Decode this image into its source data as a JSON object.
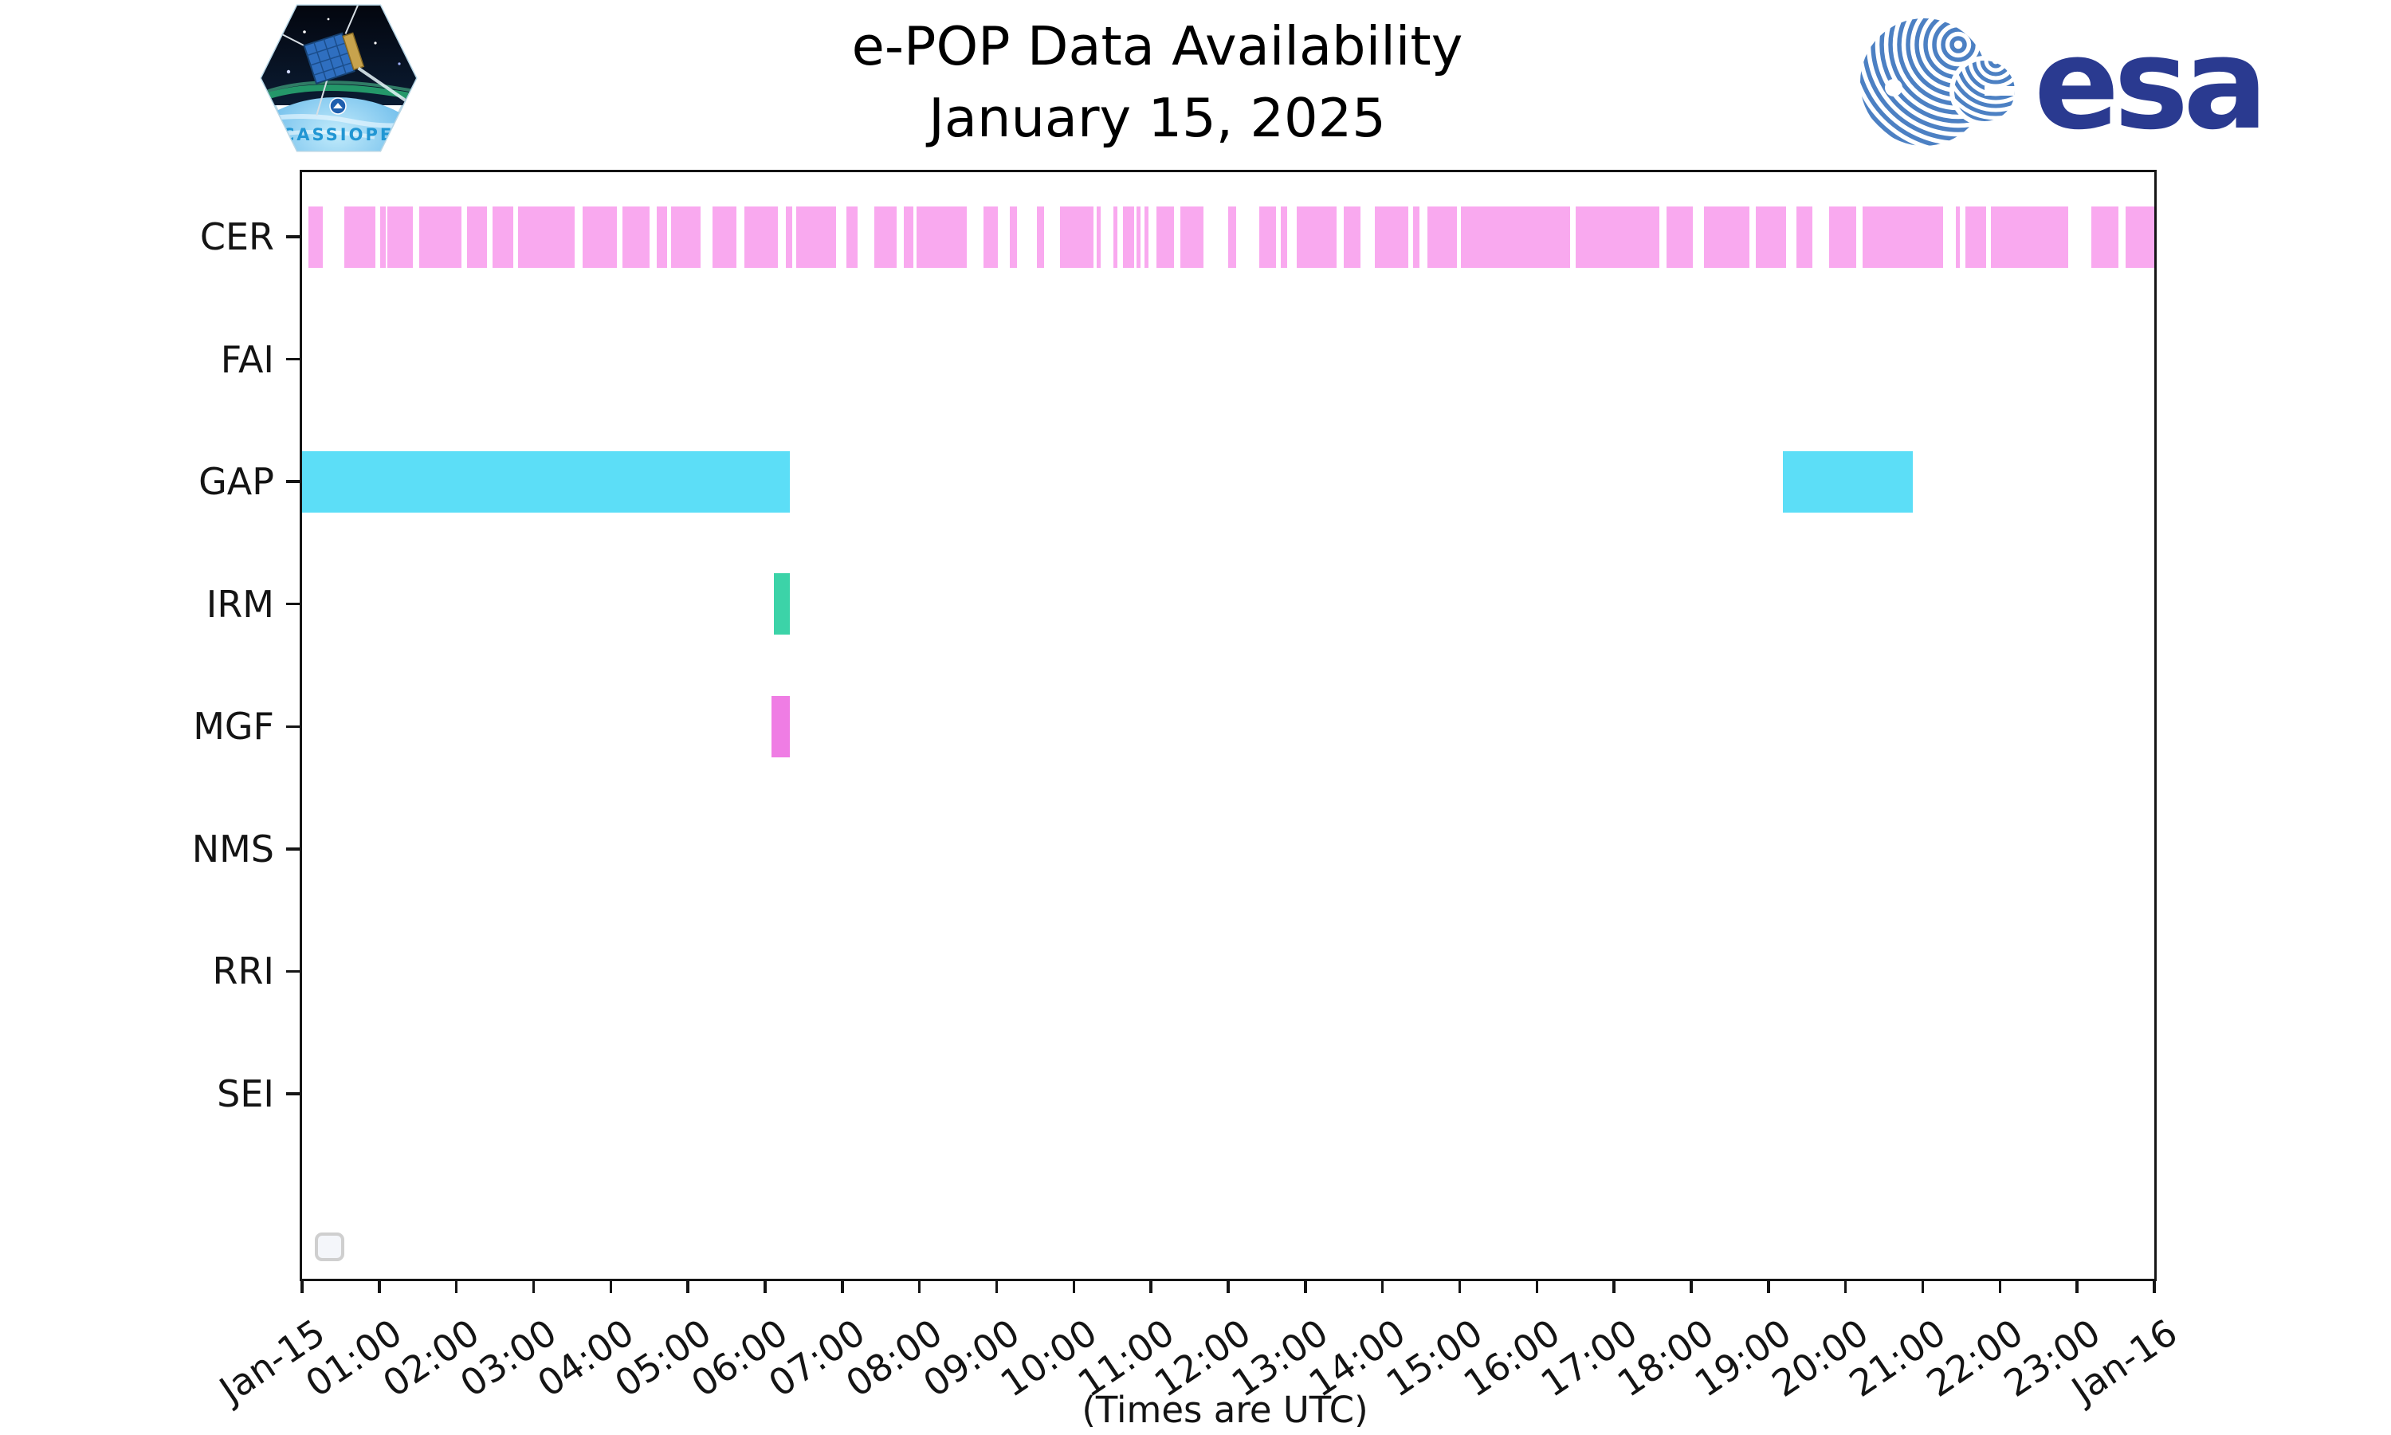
{
  "header": {
    "title_line1": "e-POP Data Availability",
    "title_line2": "January 15, 2025",
    "cassiope_label": "CASSIOPE",
    "esa_label": "esa"
  },
  "chart_data": {
    "type": "bar",
    "variant": "horizontal-availability-timeline (broken bars per instrument)",
    "title": "e-POP Data Availability",
    "subtitle": "January 15, 2025",
    "xlabel": "(Times are UTC)",
    "ylabel": "",
    "categories": [
      "CER",
      "FAI",
      "GAP",
      "IRM",
      "MGF",
      "NMS",
      "RRI",
      "SEI"
    ],
    "x_axis": {
      "tick_labels": [
        "Jan-15",
        "01:00",
        "02:00",
        "03:00",
        "04:00",
        "05:00",
        "06:00",
        "07:00",
        "08:00",
        "09:00",
        "10:00",
        "11:00",
        "12:00",
        "13:00",
        "14:00",
        "15:00",
        "16:00",
        "17:00",
        "18:00",
        "19:00",
        "20:00",
        "21:00",
        "22:00",
        "23:00",
        "Jan-16"
      ],
      "range_minutes": [
        0,
        1440
      ],
      "units": "minutes since Jan-15 00:00 UTC"
    },
    "grid": false,
    "legend": {
      "visible": true,
      "entries": [],
      "note": "small empty rounded legend box at lower left of plot"
    },
    "series": [
      {
        "name": "CER",
        "color": "#f9a9ef",
        "segments_min": [
          [
            5,
            16
          ],
          [
            33,
            57
          ],
          [
            61,
            65
          ],
          [
            66,
            86
          ],
          [
            91,
            124
          ],
          [
            128,
            144
          ],
          [
            148,
            164
          ],
          [
            168,
            212
          ],
          [
            218,
            245
          ],
          [
            249,
            270
          ],
          [
            276,
            284
          ],
          [
            287,
            310
          ],
          [
            319,
            338
          ],
          [
            344,
            370
          ],
          [
            376,
            381
          ],
          [
            384,
            415
          ],
          [
            423,
            432
          ],
          [
            445,
            462
          ],
          [
            468,
            475
          ],
          [
            478,
            517
          ],
          [
            530,
            541
          ],
          [
            550,
            556
          ],
          [
            571,
            577
          ],
          [
            589,
            615
          ],
          [
            618,
            621
          ],
          [
            631,
            634
          ],
          [
            638,
            647
          ],
          [
            649,
            652
          ],
          [
            655,
            658
          ],
          [
            664,
            678
          ],
          [
            683,
            701
          ],
          [
            720,
            726
          ],
          [
            744,
            757
          ],
          [
            761,
            766
          ],
          [
            773,
            804
          ],
          [
            810,
            823
          ],
          [
            834,
            860
          ],
          [
            864,
            869
          ],
          [
            875,
            898
          ],
          [
            901,
            986
          ],
          [
            990,
            1055
          ],
          [
            1061,
            1081
          ],
          [
            1090,
            1125
          ],
          [
            1130,
            1154
          ],
          [
            1162,
            1174
          ],
          [
            1187,
            1208
          ],
          [
            1213,
            1276
          ],
          [
            1286,
            1289
          ],
          [
            1293,
            1309
          ],
          [
            1313,
            1373
          ],
          [
            1391,
            1412
          ],
          [
            1418,
            1440
          ]
        ]
      },
      {
        "name": "FAI",
        "color": "#c9c9c9",
        "segments_min": []
      },
      {
        "name": "GAP",
        "color": "#5cdef7",
        "segments_min": [
          [
            0,
            379
          ],
          [
            1151,
            1252
          ]
        ]
      },
      {
        "name": "IRM",
        "color": "#3cd3a8",
        "segments_min": [
          [
            367,
            379
          ]
        ]
      },
      {
        "name": "MGF",
        "color": "#ef7de4",
        "segments_min": [
          [
            365,
            379
          ]
        ]
      },
      {
        "name": "NMS",
        "color": "#c9c9c9",
        "segments_min": []
      },
      {
        "name": "RRI",
        "color": "#c9c9c9",
        "segments_min": []
      },
      {
        "name": "SEI",
        "color": "#c9c9c9",
        "segments_min": []
      }
    ]
  }
}
